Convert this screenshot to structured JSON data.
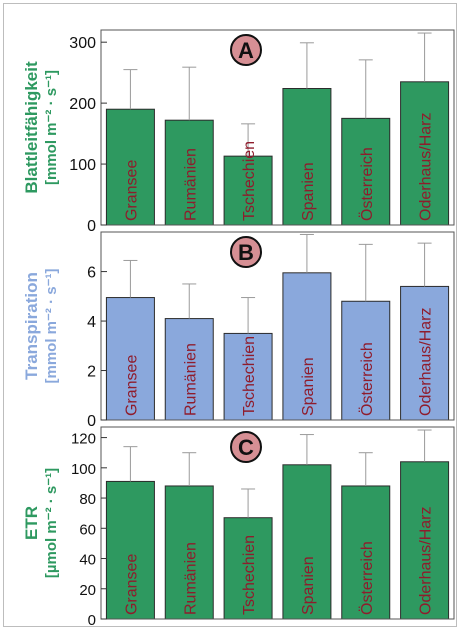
{
  "colors": {
    "green": "#2e9960",
    "blue": "#8aa8dc",
    "label_red": "#8f1c2c",
    "badge_fill": "#d68f94"
  },
  "chart_data": [
    {
      "panel": "A",
      "type": "bar",
      "ylabel_line1": "Blattleitfähigkeit",
      "ylabel_line2": "[mmol m⁻² · s⁻¹]",
      "ylabel_color": "#2e9960",
      "bar_color": "#2e9960",
      "categories": [
        "Gransee",
        "Rumänien",
        "Tschechien",
        "Spanien",
        "Österreich",
        "Oderhaus/Harz"
      ],
      "values": [
        190,
        172,
        113,
        224,
        175,
        235
      ],
      "errors": [
        65,
        87,
        53,
        75,
        96,
        80
      ],
      "ylim": [
        0,
        320
      ],
      "yticks": [
        0,
        100,
        200,
        300
      ],
      "ytick_labels": [
        "0",
        "100",
        "200",
        "300"
      ]
    },
    {
      "panel": "B",
      "type": "bar",
      "ylabel_line1": "Transpiration",
      "ylabel_line2": "[mmol m⁻² · s⁻¹]",
      "ylabel_color": "#8aa8dc",
      "bar_color": "#8aa8dc",
      "categories": [
        "Gransee",
        "Rumänien",
        "Tschechien",
        "Spanien",
        "Österreich",
        "Oderhaus/Harz"
      ],
      "values": [
        4.95,
        4.1,
        3.5,
        5.95,
        4.8,
        5.4
      ],
      "errors": [
        1.5,
        1.4,
        1.45,
        1.55,
        2.3,
        1.75
      ],
      "ylim": [
        0,
        7.6
      ],
      "yticks": [
        0,
        2,
        4,
        6
      ],
      "ytick_labels": [
        "0",
        "2",
        "4",
        "6"
      ]
    },
    {
      "panel": "C",
      "type": "bar",
      "ylabel_line1": "ETR",
      "ylabel_line2": "[µmol m⁻² · s⁻¹]",
      "ylabel_color": "#2e9960",
      "bar_color": "#2e9960",
      "categories": [
        "Gransee",
        "Rumänien",
        "Tschechien",
        "Spanien",
        "Österreich",
        "Oderhaus/Harz"
      ],
      "values": [
        91,
        88,
        67,
        102,
        88,
        104
      ],
      "errors": [
        23,
        22,
        19,
        20,
        22,
        21
      ],
      "ylim": [
        0,
        127
      ],
      "yticks": [
        0,
        20,
        40,
        60,
        80,
        100,
        120
      ],
      "ytick_labels": [
        "0",
        "20",
        "40",
        "60",
        "80",
        "100",
        "120"
      ]
    }
  ]
}
